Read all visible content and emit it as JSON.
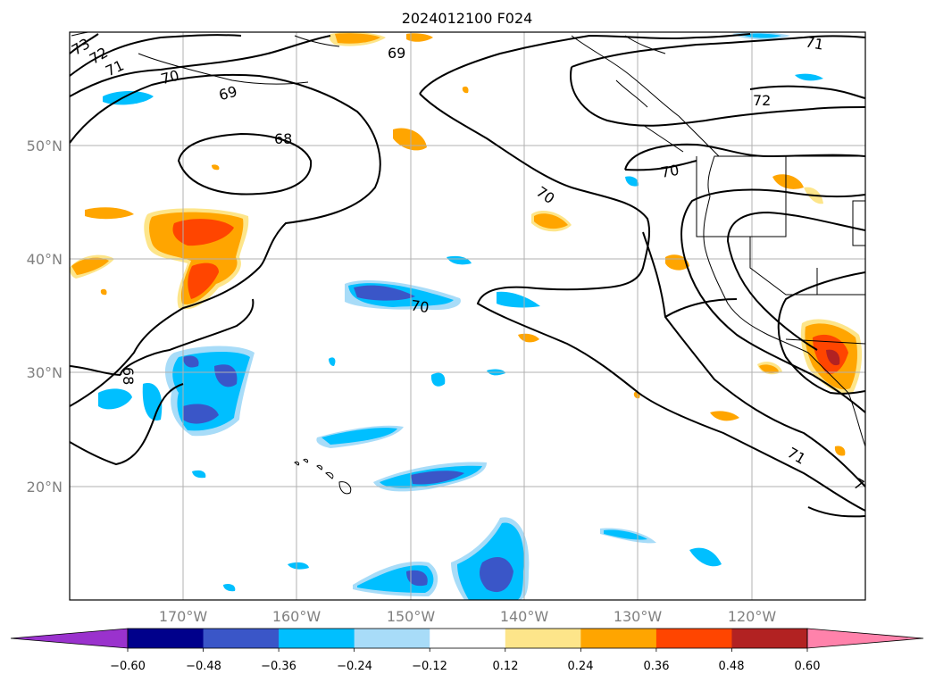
{
  "map": {
    "title": "2024012100 F024",
    "lat_labels": [
      "50°N",
      "40°N",
      "30°N",
      "20°N"
    ],
    "lon_labels": [
      "170°W",
      "160°W",
      "150°W",
      "140°W",
      "130°W",
      "120°W"
    ],
    "contour_labels": [
      "73",
      "72",
      "71",
      "70",
      "69",
      "69",
      "68",
      "70",
      "70",
      "70",
      "68",
      "72",
      "71",
      "71",
      "7"
    ],
    "shading_colors": {
      "strong_negative": "#3a56c8",
      "negative": "#00bfff",
      "weak_negative": "#a8dcf8",
      "weak_positive": "#fde58a",
      "positive": "#ffa500",
      "strong_positive": "#ff4500",
      "very_strong_positive": "#b22222"
    }
  },
  "colorbar": {
    "colors": [
      "#9a32cd",
      "#00008b",
      "#3a56c8",
      "#00bfff",
      "#a8dcf8",
      "#ffffff",
      "#fde58a",
      "#ffa500",
      "#ff4500",
      "#b22222",
      "#ff82ab"
    ],
    "tick_labels": [
      "−0.60",
      "−0.48",
      "−0.36",
      "−0.24",
      "−0.12",
      "0.12",
      "0.24",
      "0.36",
      "0.48",
      "0.60"
    ]
  }
}
